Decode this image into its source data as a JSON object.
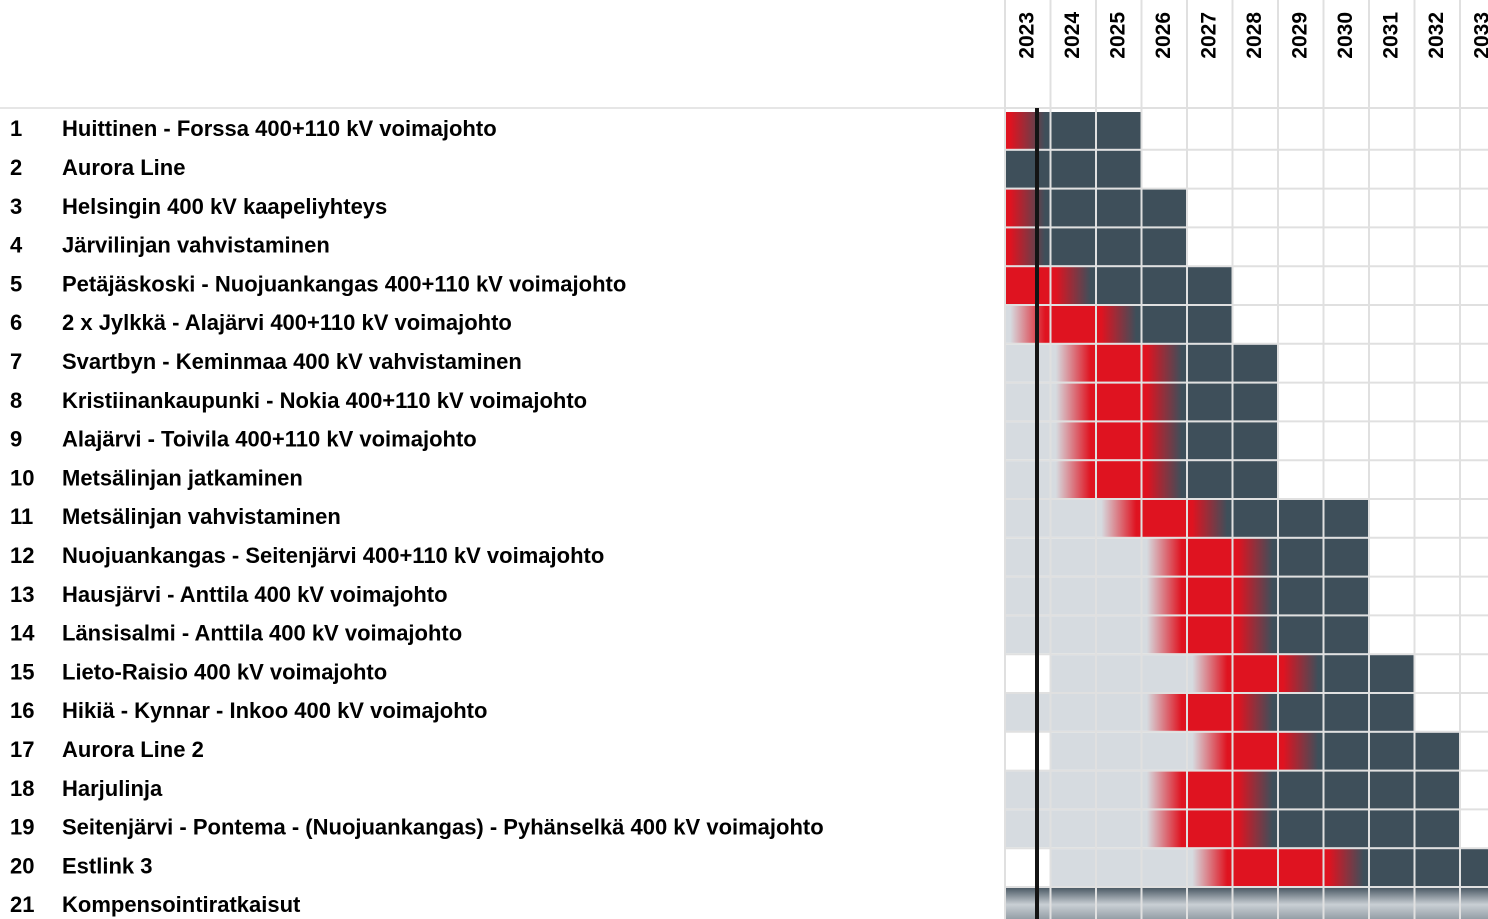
{
  "years": [
    "2023",
    "2024",
    "2025",
    "2026",
    "2027",
    "2028",
    "2029",
    "2030",
    "2031",
    "2032",
    "2033"
  ],
  "colors": {
    "light": "#d6dbe0",
    "red": "#df1320",
    "dark": "#3e4f5a",
    "line": "#141414"
  },
  "rows": [
    {
      "number": "1",
      "name": "Huittinen - Forssa 400+110 kV voimajohto",
      "cells": [
        [
          "red",
          "dark"
        ],
        "dark",
        "dark",
        null,
        null,
        null,
        null,
        null,
        null,
        null,
        null
      ]
    },
    {
      "number": "2",
      "name": "Aurora Line",
      "cells": [
        "dark",
        "dark",
        "dark",
        null,
        null,
        null,
        null,
        null,
        null,
        null,
        null
      ]
    },
    {
      "number": "3",
      "name": "Helsingin 400 kV kaapeliyhteys",
      "cells": [
        [
          "red",
          "dark"
        ],
        "dark",
        "dark",
        "dark",
        null,
        null,
        null,
        null,
        null,
        null,
        null
      ]
    },
    {
      "number": "4",
      "name": "Järvilinjan vahvistaminen",
      "cells": [
        [
          "red",
          "dark"
        ],
        "dark",
        "dark",
        "dark",
        null,
        null,
        null,
        null,
        null,
        null,
        null
      ]
    },
    {
      "number": "5",
      "name": "Petäjäskoski - Nuojuankangas 400+110 kV voimajohto",
      "cells": [
        "red",
        [
          "red",
          "dark"
        ],
        "dark",
        "dark",
        "dark",
        null,
        null,
        null,
        null,
        null,
        null
      ]
    },
    {
      "number": "6",
      "name": "2 x Jylkkä - Alajärvi 400+110 kV voimajohto",
      "cells": [
        [
          "light",
          "red"
        ],
        "red",
        [
          "red",
          "dark"
        ],
        "dark",
        "dark",
        null,
        null,
        null,
        null,
        null,
        null
      ]
    },
    {
      "number": "7",
      "name": "Svartbyn - Keminmaa 400 kV vahvistaminen",
      "cells": [
        "light",
        [
          "light",
          "red"
        ],
        "red",
        [
          "red",
          "dark"
        ],
        "dark",
        "dark",
        null,
        null,
        null,
        null,
        null
      ]
    },
    {
      "number": "8",
      "name": "Kristiinankaupunki - Nokia 400+110 kV voimajohto",
      "cells": [
        "light",
        [
          "light",
          "red"
        ],
        "red",
        [
          "red",
          "dark"
        ],
        "dark",
        "dark",
        null,
        null,
        null,
        null,
        null
      ]
    },
    {
      "number": "9",
      "name": "Alajärvi - Toivila 400+110 kV voimajohto",
      "cells": [
        "light",
        [
          "light",
          "red"
        ],
        "red",
        [
          "red",
          "dark"
        ],
        "dark",
        "dark",
        null,
        null,
        null,
        null,
        null
      ]
    },
    {
      "number": "10",
      "name": "Metsälinjan jatkaminen",
      "cells": [
        "light",
        [
          "light",
          "red"
        ],
        "red",
        [
          "red",
          "dark"
        ],
        "dark",
        "dark",
        null,
        null,
        null,
        null,
        null
      ]
    },
    {
      "number": "11",
      "name": "Metsälinjan vahvistaminen",
      "cells": [
        "light",
        "light",
        [
          "light",
          "red"
        ],
        "red",
        [
          "red",
          "dark"
        ],
        "dark",
        "dark",
        "dark",
        null,
        null,
        null
      ]
    },
    {
      "number": "12",
      "name": "Nuojuankangas - Seitenjärvi 400+110 kV voimajohto",
      "cells": [
        "light",
        "light",
        "light",
        [
          "light",
          "red"
        ],
        "red",
        [
          "red",
          "dark"
        ],
        "dark",
        "dark",
        null,
        null,
        null
      ]
    },
    {
      "number": "13",
      "name": "Hausjärvi - Anttila 400 kV voimajohto",
      "cells": [
        "light",
        "light",
        "light",
        [
          "light",
          "red"
        ],
        "red",
        [
          "red",
          "dark"
        ],
        "dark",
        "dark",
        null,
        null,
        null
      ]
    },
    {
      "number": "14",
      "name": "Länsisalmi - Anttila 400 kV voimajohto",
      "cells": [
        "light",
        "light",
        "light",
        [
          "light",
          "red"
        ],
        "red",
        [
          "red",
          "dark"
        ],
        "dark",
        "dark",
        null,
        null,
        null
      ]
    },
    {
      "number": "15",
      "name": "Lieto-Raisio 400 kV voimajohto",
      "cells": [
        null,
        "light",
        "light",
        "light",
        [
          "light",
          "red"
        ],
        "red",
        [
          "red",
          "dark"
        ],
        "dark",
        "dark",
        null,
        null
      ]
    },
    {
      "number": "16",
      "name": "Hikiä - Kynnar - Inkoo 400 kV voimajohto",
      "cells": [
        "light",
        "light",
        "light",
        [
          "light",
          "red"
        ],
        "red",
        [
          "red",
          "dark"
        ],
        "dark",
        "dark",
        "dark",
        null,
        null
      ]
    },
    {
      "number": "17",
      "name": "Aurora Line 2",
      "cells": [
        null,
        "light",
        "light",
        "light",
        [
          "light",
          "red"
        ],
        "red",
        [
          "red",
          "dark"
        ],
        "dark",
        "dark",
        "dark",
        null
      ]
    },
    {
      "number": "18",
      "name": "Harjulinja",
      "cells": [
        "light",
        "light",
        "light",
        [
          "light",
          "red"
        ],
        "red",
        [
          "red",
          "dark"
        ],
        "dark",
        "dark",
        "dark",
        "dark",
        null
      ]
    },
    {
      "number": "19",
      "name": "Seitenjärvi - Pontema - (Nuojuankangas) - Pyhänselkä 400 kV voimajohto",
      "cells": [
        "light",
        "light",
        "light",
        [
          "light",
          "red"
        ],
        "red",
        [
          "red",
          "dark"
        ],
        "dark",
        "dark",
        "dark",
        "dark",
        null
      ]
    },
    {
      "number": "20",
      "name": "Estlink 3",
      "cells": [
        null,
        "light",
        "light",
        "light",
        [
          "light",
          "red"
        ],
        "red",
        "red",
        [
          "red",
          "dark"
        ],
        "dark",
        "dark",
        "dark"
      ]
    },
    {
      "number": "21",
      "name": "Kompensointiratkaisut",
      "cells": [
        "metal",
        "metal",
        "metal",
        "metal",
        "metal",
        "metal",
        "metal",
        "metal",
        "metal",
        "metal",
        "metal"
      ]
    }
  ]
}
